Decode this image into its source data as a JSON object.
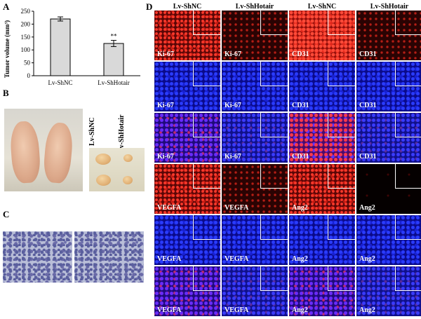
{
  "panel_letters": {
    "a": "A",
    "b": "B",
    "c": "C",
    "d": "D"
  },
  "chart_data": {
    "type": "bar",
    "categories": [
      "Lv-ShNC",
      "Lv-ShHotair"
    ],
    "values": [
      220,
      125
    ],
    "errors": [
      8,
      12
    ],
    "ylabel": "Tumor volume (mm³)",
    "ylim": [
      0,
      250
    ],
    "yticks": [
      0,
      50,
      100,
      150,
      200,
      250
    ],
    "annotation": "**",
    "bar_color": "#d9d9d9"
  },
  "panel_b": {
    "labels": [
      "Lv-ShNC",
      "Lv-ShHotair"
    ]
  },
  "panel_d": {
    "column_headers": [
      "Lv-ShNC",
      "Lv-ShHotair",
      "Lv-ShNC",
      "Lv-ShHotair"
    ],
    "rows": [
      {
        "labels": [
          "Ki-67",
          "Ki-67",
          "CD31",
          "CD31"
        ],
        "styles": [
          "red",
          "red-dim",
          "red-bright",
          "red-dim"
        ]
      },
      {
        "labels": [
          "Ki-67",
          "Ki-67",
          "CD31",
          "CD31"
        ],
        "styles": [
          "blue",
          "blue",
          "blue",
          "blue"
        ]
      },
      {
        "labels": [
          "Ki-67",
          "Ki-67",
          "CD31",
          "CD31"
        ],
        "styles": [
          "merge",
          "merge-blue",
          "merge-red",
          "merge-blue"
        ]
      },
      {
        "labels": [
          "VEGFA",
          "VEGFA",
          "Ang2",
          "Ang2"
        ],
        "styles": [
          "red",
          "red-dim",
          "red",
          "red-black"
        ]
      },
      {
        "labels": [
          "VEGFA",
          "VEGFA",
          "Ang2",
          "Ang2"
        ],
        "styles": [
          "blue",
          "blue",
          "blue",
          "blue"
        ]
      },
      {
        "labels": [
          "VEGFA",
          "VEGFA",
          "Ang2",
          "Ang2"
        ],
        "styles": [
          "merge",
          "merge-blue",
          "merge",
          "merge-blue"
        ]
      }
    ]
  }
}
